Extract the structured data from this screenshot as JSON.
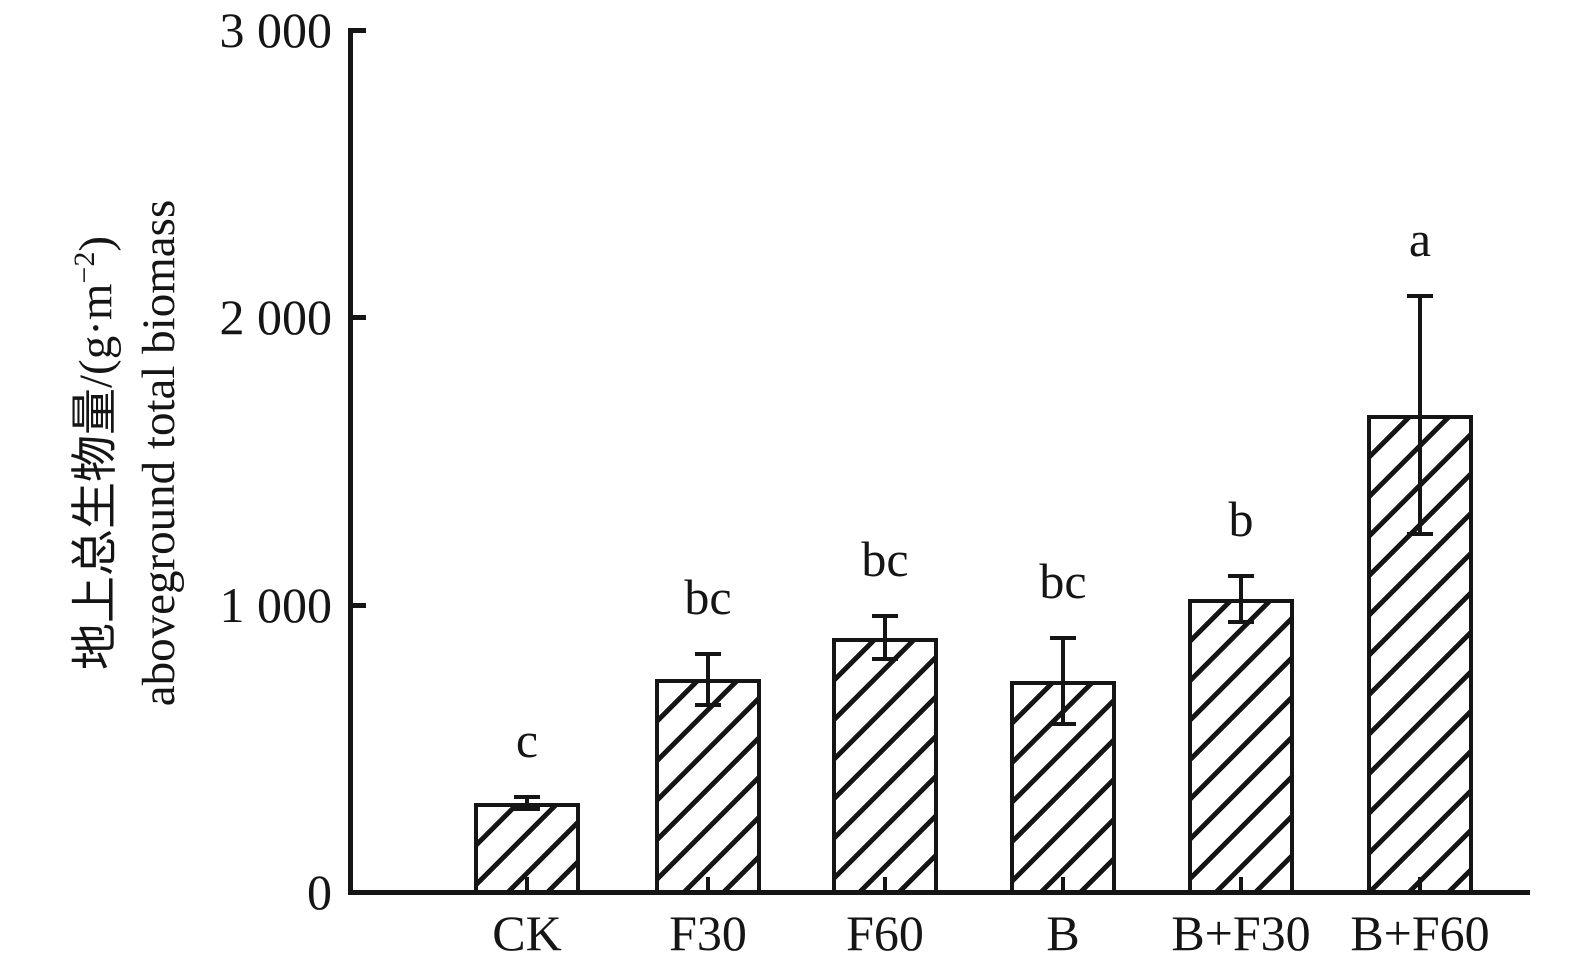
{
  "figure": {
    "background": "#ffffff",
    "ink_color": "#151515"
  },
  "y_axis": {
    "label_cn": "地上总生物量/(g·m⁻²)",
    "label_cn_parts": {
      "prefix": "地上总生物量/(g·m",
      "sup": "−2",
      "suffix": ")"
    },
    "label_en": "aboveground total biomass"
  },
  "chart_data": {
    "type": "bar",
    "title": "",
    "xlabel": "",
    "ylabel": "地上总生物量/(g·m⁻²) aboveground total biomass",
    "categories": [
      "CK",
      "F30",
      "F60",
      "B",
      "B+F30",
      "B+F60"
    ],
    "values": [
      310,
      740,
      885,
      735,
      1020,
      1660
    ],
    "errors": [
      20,
      90,
      75,
      150,
      80,
      415
    ],
    "sig_letters": [
      "c",
      "bc",
      "bc",
      "bc",
      "b",
      "a"
    ],
    "ylim": [
      0,
      3000
    ],
    "yticks": [
      {
        "value": 0,
        "label": "0"
      },
      {
        "value": 1000,
        "label": "1 000"
      },
      {
        "value": 2000,
        "label": "2 000"
      },
      {
        "value": 3000,
        "label": "3 000"
      }
    ],
    "grid": false,
    "legend": null,
    "bar_style": {
      "fill": "diagonal-hatch",
      "hatch_direction": "forward-slash",
      "outline_color": "#151515",
      "hatch_color": "#151515"
    },
    "error_bars": {
      "symmetric": true,
      "caps": true
    }
  }
}
